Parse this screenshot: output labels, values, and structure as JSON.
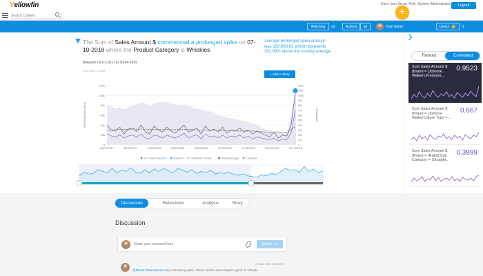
{
  "topbar": {
    "logo_main": "ellow",
    "logo_accent": "Y",
    "logo_end": "fin",
    "user_info": "User: Ivan Seran, Role: System Administrator",
    "logout_label": "Logout",
    "fab_label": "+"
  },
  "search": {
    "placeholder": "Search Content"
  },
  "toolbar": {
    "watching_label": "Watching",
    "watch_count": "x3",
    "actions_label": "Actions",
    "user_name": "Ivan Seran",
    "useful_label": "Useful",
    "useful_count": "1"
  },
  "insight": {
    "headline_pre": "The Sum of ",
    "measure": "Sales Amount $",
    "event": "commenced a prolonged spike",
    "headline_on": " on ",
    "date": "07-10-2018",
    "headline_where": " where the ",
    "dimension": "Product Category",
    "headline_is": " is ",
    "value": "Whiskies",
    "period": "Between 01-01-2017 to 30-04-2019",
    "view_sql": "View Query / Data",
    "sidenote": "Average prolonged spike amount was 108,988.62 which represents 302.99% above the moving average",
    "add_story": "+ Add to Story"
  },
  "chart_data": {
    "type": "line",
    "ylabel": "Sum Sales Amount $",
    "y2label": "Correlated",
    "yticks": [
      "0",
      "20k",
      "40k",
      "60k",
      "80k",
      "100k",
      "120k"
    ],
    "y2ticks": [
      "0",
      "10k",
      "20k",
      "30k",
      "40k",
      "50k",
      "60k",
      "70k",
      "80k",
      "90k",
      "100k",
      "110k",
      "120k"
    ],
    "xticks": [
      "26/07/2017",
      "20/09/2017",
      "15/01/2018",
      "10/03/2018",
      "05/05/2018",
      "30/06/2018",
      "27/08/2018",
      "22/09/2018",
      "17/10/2018"
    ],
    "legend": [
      "Sum Sales Amount $",
      "Breakout",
      "Confidence Interval",
      "Moving Average",
      "Correlated"
    ],
    "series": [
      {
        "name": "Sum Sales Amount $",
        "values": [
          40,
          30,
          28,
          36,
          22,
          32,
          34,
          27,
          40,
          26,
          22,
          38,
          30,
          26,
          36,
          28,
          24,
          32,
          40,
          26,
          30,
          34,
          22,
          38,
          28,
          32,
          26,
          36,
          24,
          30,
          28,
          34,
          26,
          30,
          22,
          28,
          24,
          20,
          16,
          26,
          14,
          20,
          18,
          40,
          104
        ]
      },
      {
        "name": "Moving Average",
        "values": [
          30,
          30,
          31,
          31,
          31,
          31,
          32,
          32,
          32,
          32,
          31,
          31,
          31,
          31,
          31,
          31,
          31,
          31,
          31,
          31,
          31,
          30,
          30,
          30,
          30,
          30,
          29,
          29,
          29,
          29,
          28,
          28,
          28,
          28,
          28,
          27,
          27,
          26,
          25,
          25,
          25,
          24,
          25,
          30,
          38
        ]
      },
      {
        "name": "Correlated",
        "values": [
          22,
          18,
          16,
          20,
          14,
          18,
          20,
          16,
          22,
          14,
          12,
          20,
          18,
          14,
          20,
          16,
          14,
          18,
          24,
          14,
          18,
          20,
          12,
          22,
          16,
          18,
          14,
          20,
          14,
          18,
          16,
          20,
          14,
          18,
          12,
          16,
          14,
          12,
          10,
          14,
          8,
          12,
          10,
          24,
          70
        ]
      }
    ],
    "band": [
      80,
      78,
      74,
      76,
      72,
      76,
      80,
      82,
      86,
      84,
      80,
      84,
      86,
      88,
      86,
      84,
      82,
      80,
      82,
      80,
      76,
      72,
      72,
      70,
      68,
      66,
      60,
      58,
      56,
      54,
      52,
      50,
      48,
      46,
      44,
      40,
      36,
      32,
      30,
      28,
      28,
      26,
      26,
      60,
      110
    ],
    "navigator": [
      20,
      32,
      26,
      28,
      40,
      34,
      30,
      44,
      30,
      38,
      34,
      46,
      32,
      28,
      40,
      30,
      42,
      34,
      44,
      36,
      30,
      44,
      38,
      32,
      40,
      28,
      34,
      30,
      38,
      26,
      30,
      28,
      32,
      24,
      22,
      26,
      20,
      18,
      16,
      24,
      20,
      28,
      24,
      34,
      44,
      38,
      40,
      32,
      50,
      34,
      42,
      30,
      36
    ]
  },
  "right_panel": {
    "tab_related": "Related",
    "tab_correlated": "Correlated",
    "cards": [
      {
        "name": "Sum Sales Amount $ (Brand = (Johnnie Walker),Premium...",
        "score": "0.9523"
      },
      {
        "name": "Sum Sales Amount $ (Brand = (Johnnie Walker),Store Type =...",
        "score": "0.667"
      },
      {
        "name": "Sum Sales Amount $ (Brand = (Rafel),Sub Category = (Straight...",
        "score": "0.3999"
      }
    ]
  },
  "discussion": {
    "tabs": [
      "Discussion",
      "Relevance",
      "Analysis",
      "Story"
    ],
    "title": "Discussion",
    "comment_placeholder": "Enter your comment here",
    "submit_label": "Submit",
    "comment": {
      "timestamp": "23 Mar 2020 10:54 PM",
      "mention": "@Daniel Shaw-Dennis",
      "text": " very interesting spike. Check out the auto analysis, good ol' Johnnie"
    }
  },
  "colors": {
    "accent": "#0d8de0",
    "fab": "#fbb516",
    "series": "#6f6f86",
    "correlated": "#8e66d6",
    "band": "#e9e8f2",
    "highlight": "#2a9fe8"
  }
}
